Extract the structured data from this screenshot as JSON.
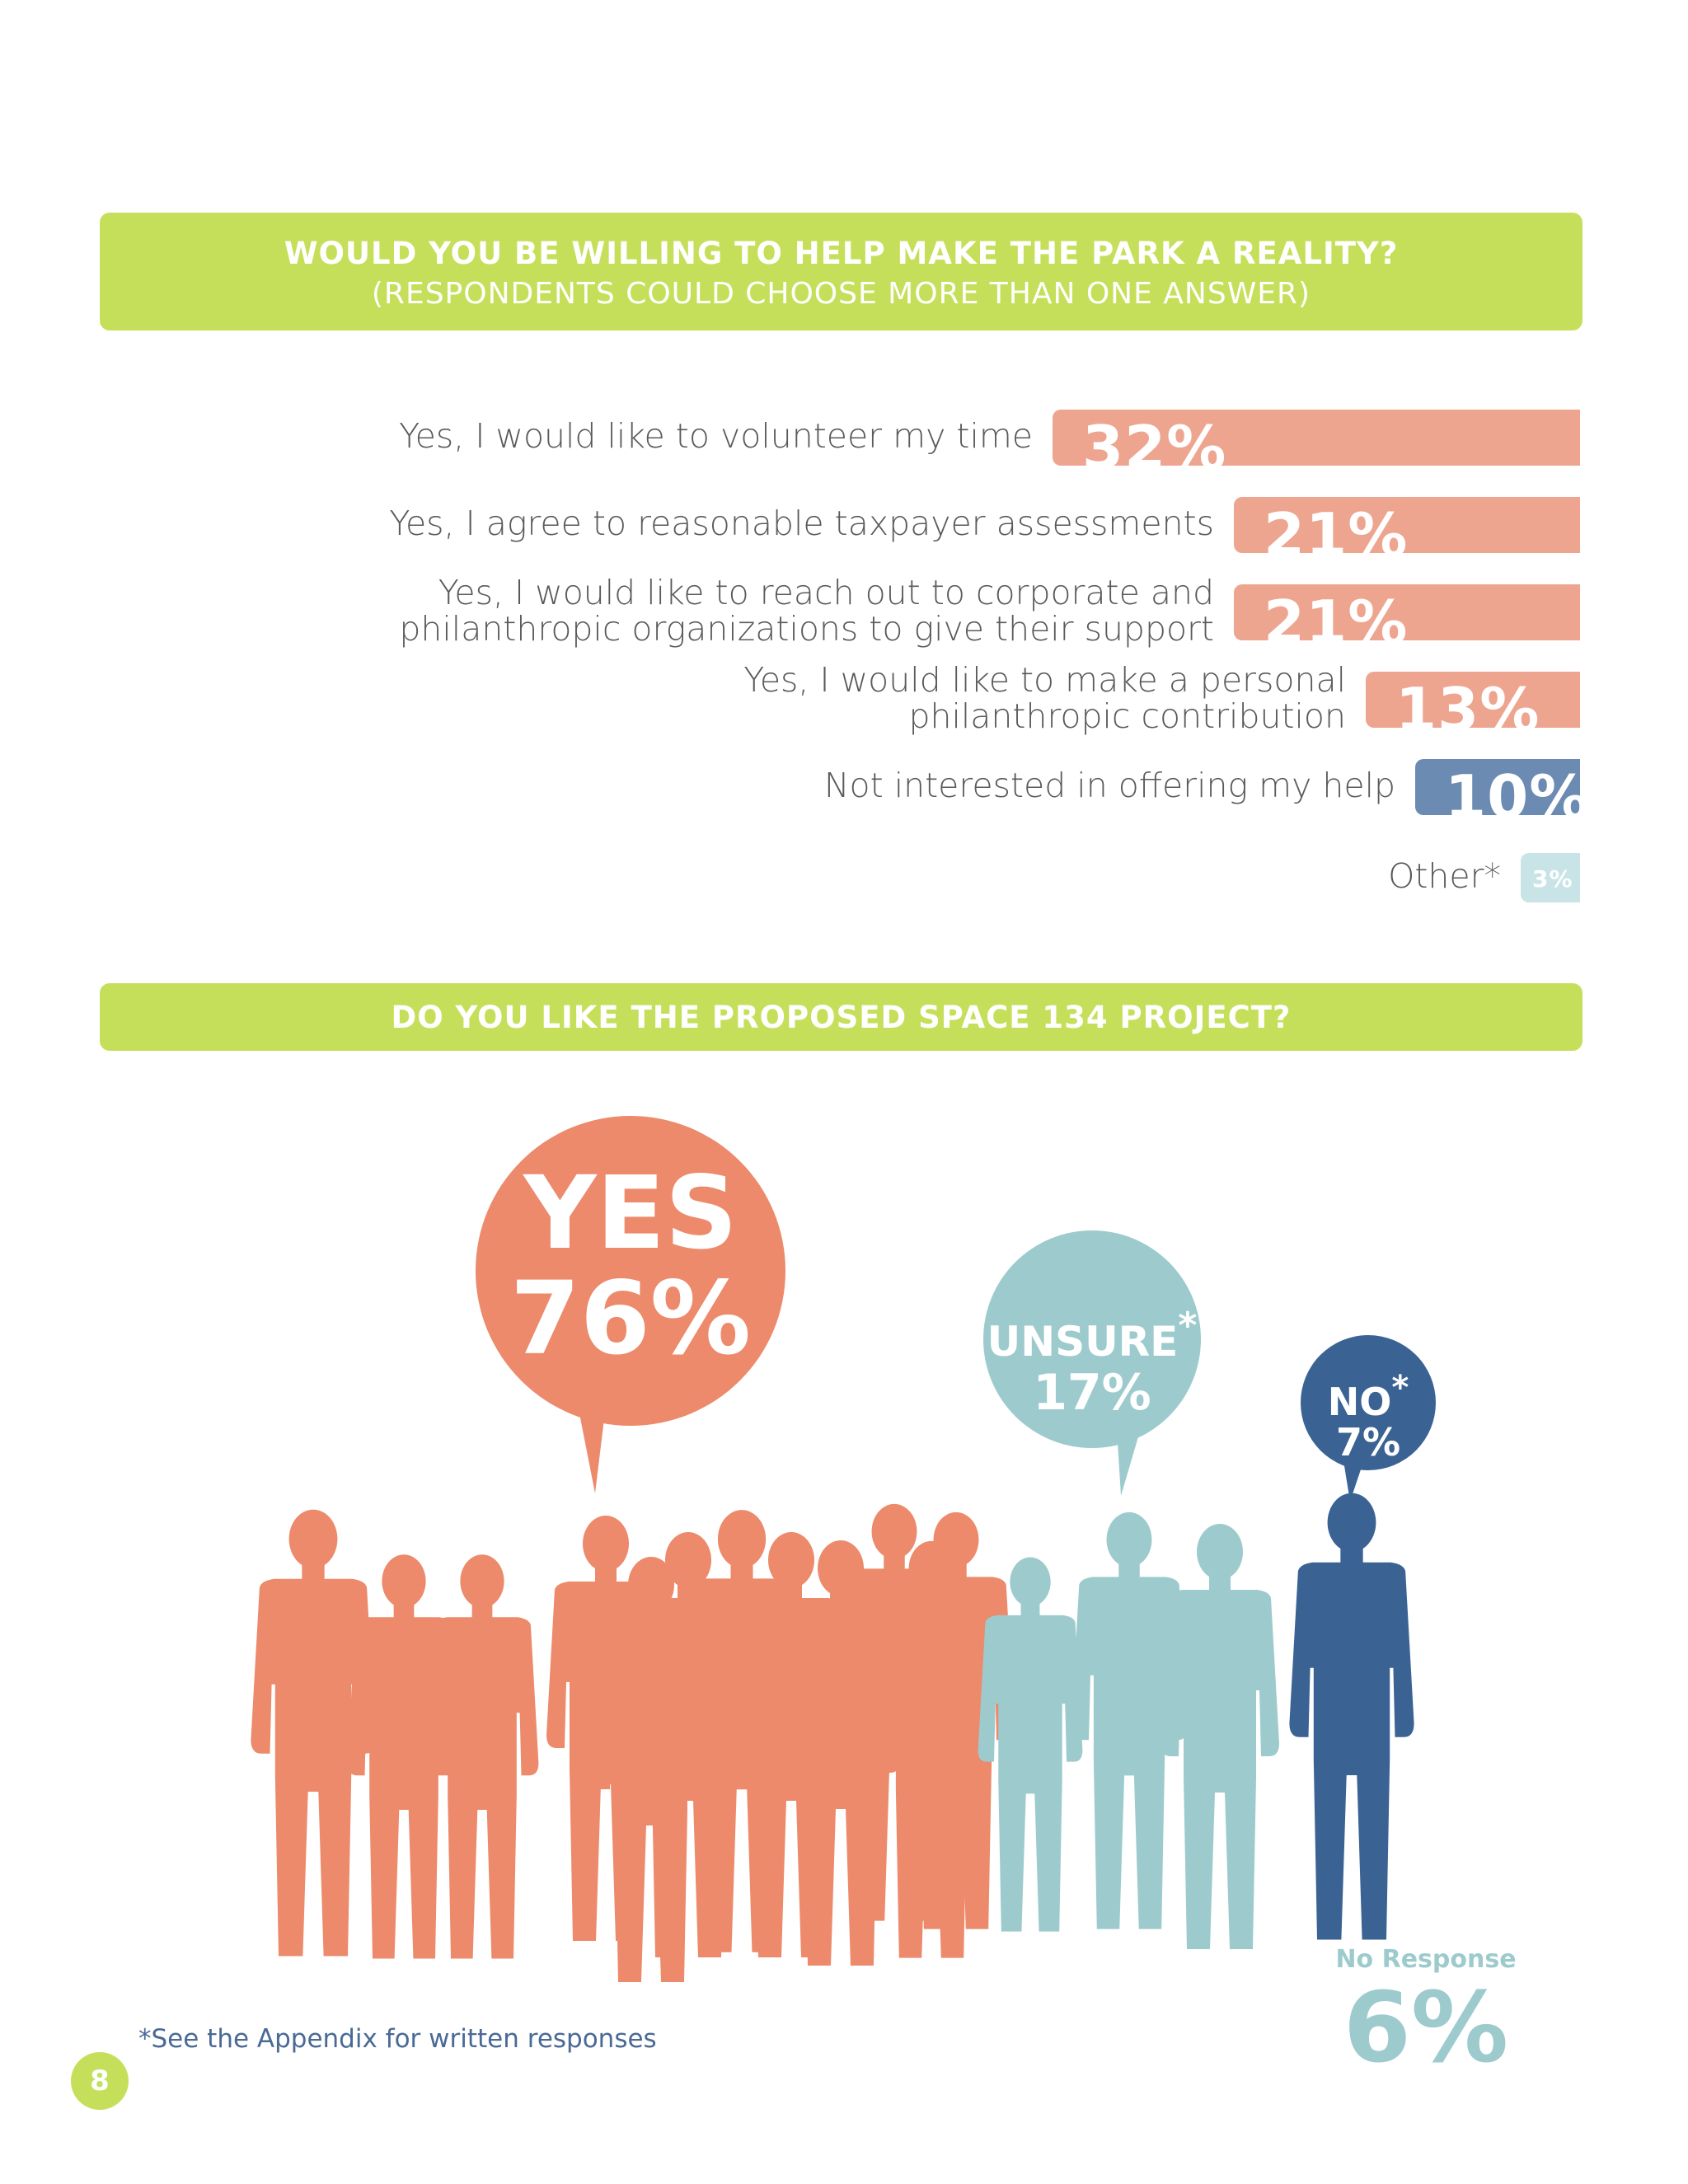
{
  "section1": {
    "title": "WOULD YOU BE WILLING TO HELP MAKE THE PARK A REALITY?",
    "subtitle": "(RESPONDENTS COULD CHOOSE MORE THAN ONE ANSWER)"
  },
  "section2": {
    "title": "DO YOU LIKE THE PROPOSED SPACE 134 PROJECT?"
  },
  "colors": {
    "banner": "#c6df5a",
    "salmon": "#eea590",
    "coral": "#ec8a6b",
    "blue": "#6b8bb3",
    "teal": "#9dcbcd",
    "lightteal": "#c9e4e6",
    "navy": "#3a6394"
  },
  "chart_data": [
    {
      "type": "bar",
      "orientation": "horizontal",
      "categories": [
        "Yes, I would like to volunteer my time",
        "Yes, I agree to reasonable taxpayer assessments",
        "Yes, I would like to reach out to corporate and philanthropic organizations to give their support",
        "Yes, I would like to make a personal philanthropic contribution",
        "Not interested in offering my help",
        "Other*"
      ],
      "label_lines": [
        [
          "Yes, I would like to volunteer my time"
        ],
        [
          "Yes, I agree to reasonable taxpayer assessments"
        ],
        [
          "Yes, I would like to reach out to corporate and",
          "philanthropic organizations to give their support"
        ],
        [
          "Yes, I would like to make a personal",
          "philanthropic contribution"
        ],
        [
          "Not interested in offering my help"
        ],
        [
          "Other*"
        ]
      ],
      "values": [
        32,
        21,
        21,
        13,
        10,
        3
      ],
      "value_labels": [
        "32%",
        "21%",
        "21%",
        "13%",
        "10%",
        "3%"
      ],
      "bar_colors": [
        "#eea590",
        "#eea590",
        "#eea590",
        "#eea590",
        "#6b8bb3",
        "#c9e4e6"
      ],
      "value_unit": "%"
    },
    {
      "type": "pictograph",
      "categories": [
        "YES",
        "UNSURE*",
        "NO*",
        "No Response"
      ],
      "values": [
        76,
        17,
        7,
        6
      ],
      "value_labels": [
        "76%",
        "17%",
        "7%",
        "6%"
      ],
      "colors": [
        "#ec8a6b",
        "#9dcbcd",
        "#3a6394",
        "#9dcbcd"
      ]
    }
  ],
  "bubbles": {
    "yes": {
      "label": "YES",
      "value": "76%"
    },
    "unsure": {
      "label": "UNSURE",
      "star": "*",
      "value": "17%"
    },
    "no": {
      "label": "NO",
      "star": "*",
      "value": "7%"
    }
  },
  "no_response": {
    "label": "No Response",
    "value": "6%"
  },
  "footnote": "*See the Appendix for written responses",
  "page_number": "8"
}
